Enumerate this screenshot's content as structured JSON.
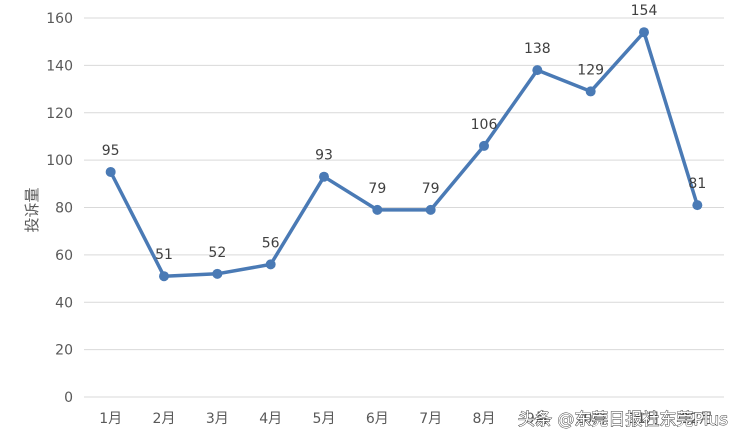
{
  "chart_data": {
    "type": "line",
    "categories": [
      "1月",
      "2月",
      "3月",
      "4月",
      "5月",
      "6月",
      "7月",
      "8月",
      "9月",
      "10月",
      "11月",
      "12月"
    ],
    "series": [
      {
        "values": [
          95,
          51,
          52,
          56,
          93,
          79,
          79,
          106,
          138,
          129,
          154,
          81
        ]
      }
    ],
    "title": "",
    "xlabel": "",
    "ylabel": "投诉量",
    "ylim": [
      0,
      160
    ],
    "yticks": [
      "0",
      "20",
      "40",
      "60",
      "80",
      "100",
      "120",
      "140",
      "160"
    ],
    "grid": true,
    "legend": "none",
    "colors": {
      "line": "#4a7ab5",
      "grid": "#d9d9d9",
      "text": "#595959"
    }
  },
  "watermark": "头条 @东莞日报社东莞Plus"
}
